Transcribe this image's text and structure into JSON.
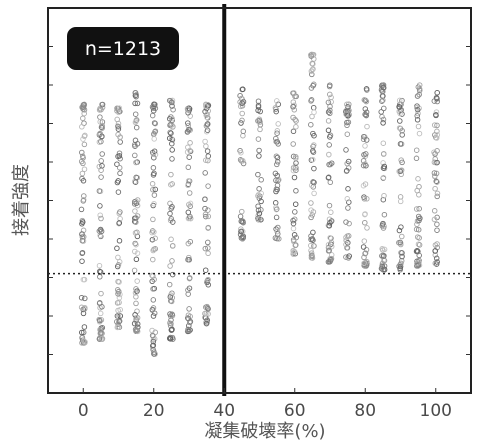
{
  "chart_data": {
    "type": "scatter",
    "title": "",
    "annotation": "n=1213",
    "xlabel": "凝集破壊率(%)",
    "ylabel": "接着強度",
    "xlim": [
      -10,
      110
    ],
    "ylim": [
      0,
      10
    ],
    "x_ticks": [
      0,
      20,
      40,
      60,
      80,
      100
    ],
    "y_ticks_labeled": false,
    "grid": false,
    "reference_lines": [
      {
        "orientation": "vertical",
        "x": 40,
        "style": "solid"
      },
      {
        "orientation": "horizontal",
        "y": 3.1,
        "style": "dotted"
      }
    ],
    "point_columns": [
      {
        "x": 0,
        "y_min": 1.3,
        "y_max": 7.5
      },
      {
        "x": 5,
        "y_min": 1.4,
        "y_max": 7.5
      },
      {
        "x": 10,
        "y_min": 1.7,
        "y_max": 7.4
      },
      {
        "x": 15,
        "y_min": 1.6,
        "y_max": 7.8
      },
      {
        "x": 20,
        "y_min": 1.0,
        "y_max": 7.5
      },
      {
        "x": 25,
        "y_min": 1.4,
        "y_max": 7.6
      },
      {
        "x": 30,
        "y_min": 1.6,
        "y_max": 7.4
      },
      {
        "x": 35,
        "y_min": 1.8,
        "y_max": 7.5
      },
      {
        "x": 45,
        "y_min": 4.0,
        "y_max": 7.9
      },
      {
        "x": 50,
        "y_min": 4.5,
        "y_max": 7.6
      },
      {
        "x": 55,
        "y_min": 4.0,
        "y_max": 7.6
      },
      {
        "x": 60,
        "y_min": 3.6,
        "y_max": 7.8
      },
      {
        "x": 65,
        "y_min": 3.5,
        "y_max": 8.8
      },
      {
        "x": 70,
        "y_min": 3.4,
        "y_max": 8.0
      },
      {
        "x": 75,
        "y_min": 3.5,
        "y_max": 7.5
      },
      {
        "x": 80,
        "y_min": 3.3,
        "y_max": 7.9
      },
      {
        "x": 85,
        "y_min": 3.2,
        "y_max": 8.0
      },
      {
        "x": 90,
        "y_min": 3.2,
        "y_max": 7.6
      },
      {
        "x": 95,
        "y_min": 3.3,
        "y_max": 8.0
      },
      {
        "x": 100,
        "y_min": 3.3,
        "y_max": 7.8
      }
    ]
  }
}
